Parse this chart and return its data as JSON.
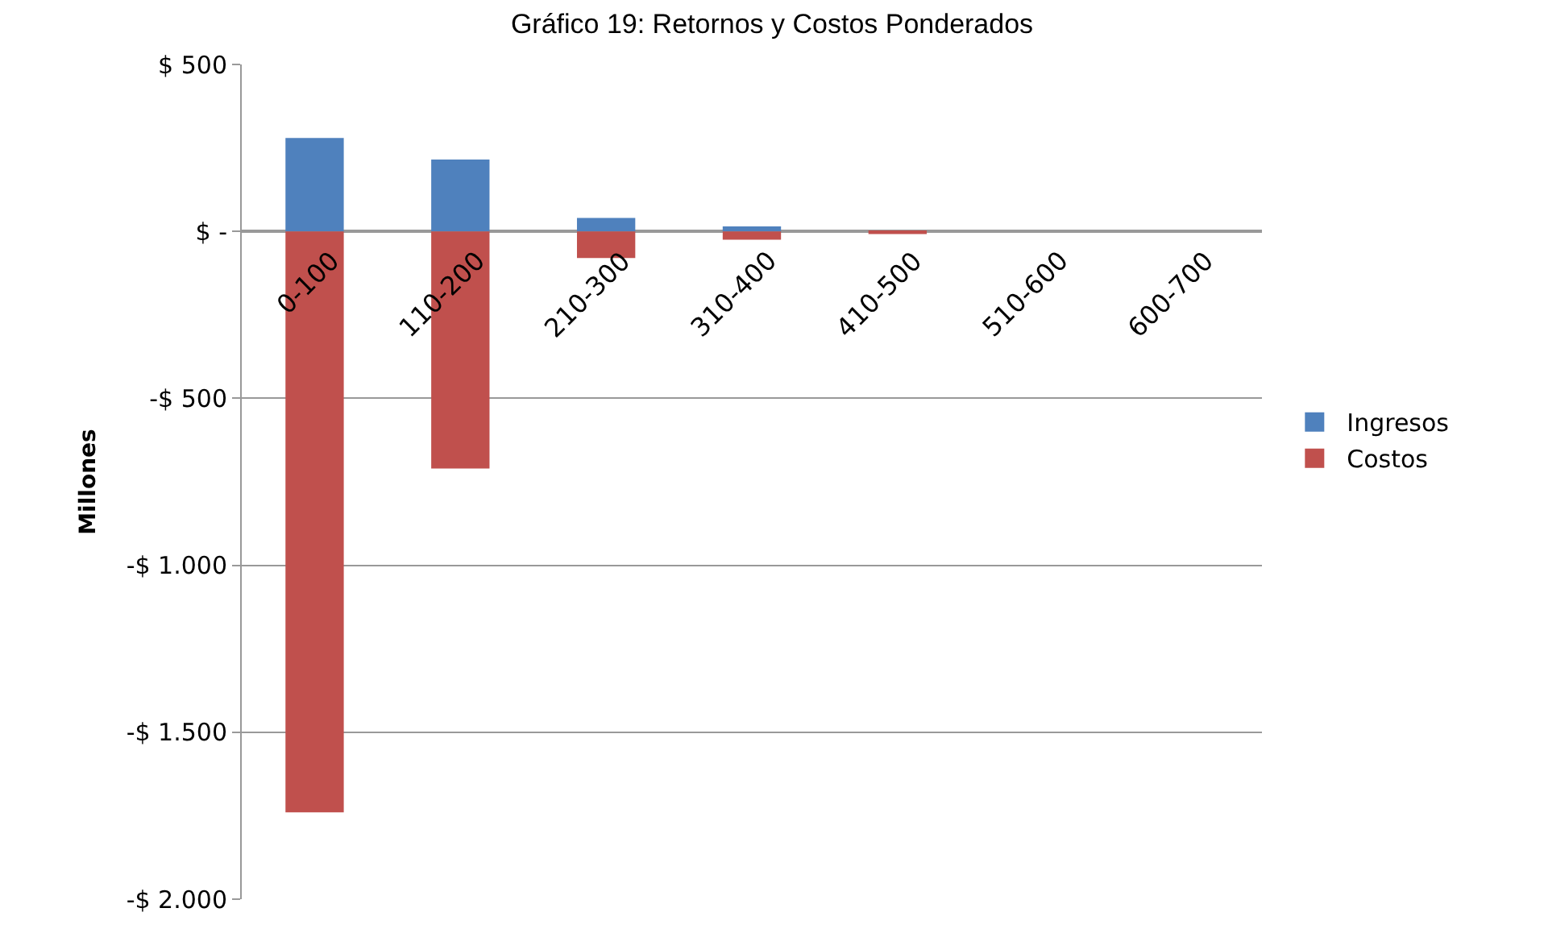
{
  "chart_data": {
    "type": "bar",
    "title": "Gráfico 19: Retornos y Costos Ponderados",
    "ylabel": "Millones",
    "categories": [
      "0-100",
      "110-200",
      "210-300",
      "310-400",
      "410-500",
      "510-600",
      "600-700"
    ],
    "stacked": true,
    "series": [
      {
        "name": "Ingresos",
        "color": "#4f81bd",
        "values": [
          280,
          215,
          40,
          15,
          null,
          null,
          null
        ]
      },
      {
        "name": "Costos",
        "color": "#c0504d",
        "values": [
          -1740,
          -710,
          -80,
          -25,
          -8,
          null,
          null
        ]
      }
    ],
    "ylim": [
      -2000,
      500
    ],
    "yticks": [
      {
        "value": 500,
        "label": "$ 500"
      },
      {
        "value": 0,
        "label": "$ -"
      },
      {
        "value": -500,
        "label": "-$ 500"
      },
      {
        "value": -1000,
        "label": "-$ 1.000"
      },
      {
        "value": -1500,
        "label": "-$ 1.500"
      },
      {
        "value": -2000,
        "label": "-$ 2.000"
      }
    ],
    "grid": "y",
    "legend": "right"
  }
}
